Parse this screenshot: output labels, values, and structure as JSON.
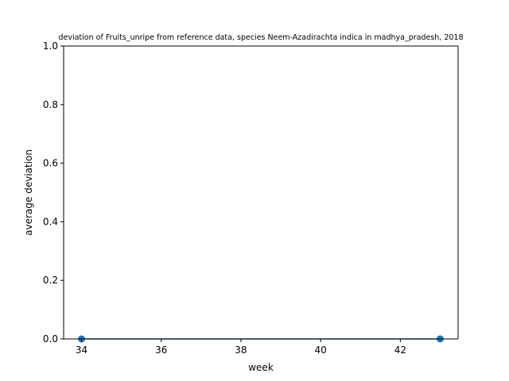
{
  "chart_data": {
    "type": "line",
    "title": "deviation of Fruits_unripe from reference data, species Neem-Azadirachta indica in madhya_pradesh, 2018",
    "xlabel": "week",
    "ylabel": "average deviation",
    "xlim": [
      33.55,
      43.45
    ],
    "ylim": [
      0,
      1
    ],
    "xticks": [
      34,
      36,
      38,
      40,
      42
    ],
    "yticks": [
      0.0,
      0.2,
      0.4,
      0.6,
      0.8,
      1.0
    ],
    "xtick_labels": [
      "34",
      "36",
      "38",
      "40",
      "42"
    ],
    "ytick_labels": [
      "0.0",
      "0.2",
      "0.4",
      "0.6",
      "0.8",
      "1.0"
    ],
    "grid": false,
    "series": [
      {
        "x": [
          34,
          43
        ],
        "y": [
          0,
          0
        ],
        "color": "#1f77b4",
        "marker": "circle"
      }
    ]
  }
}
